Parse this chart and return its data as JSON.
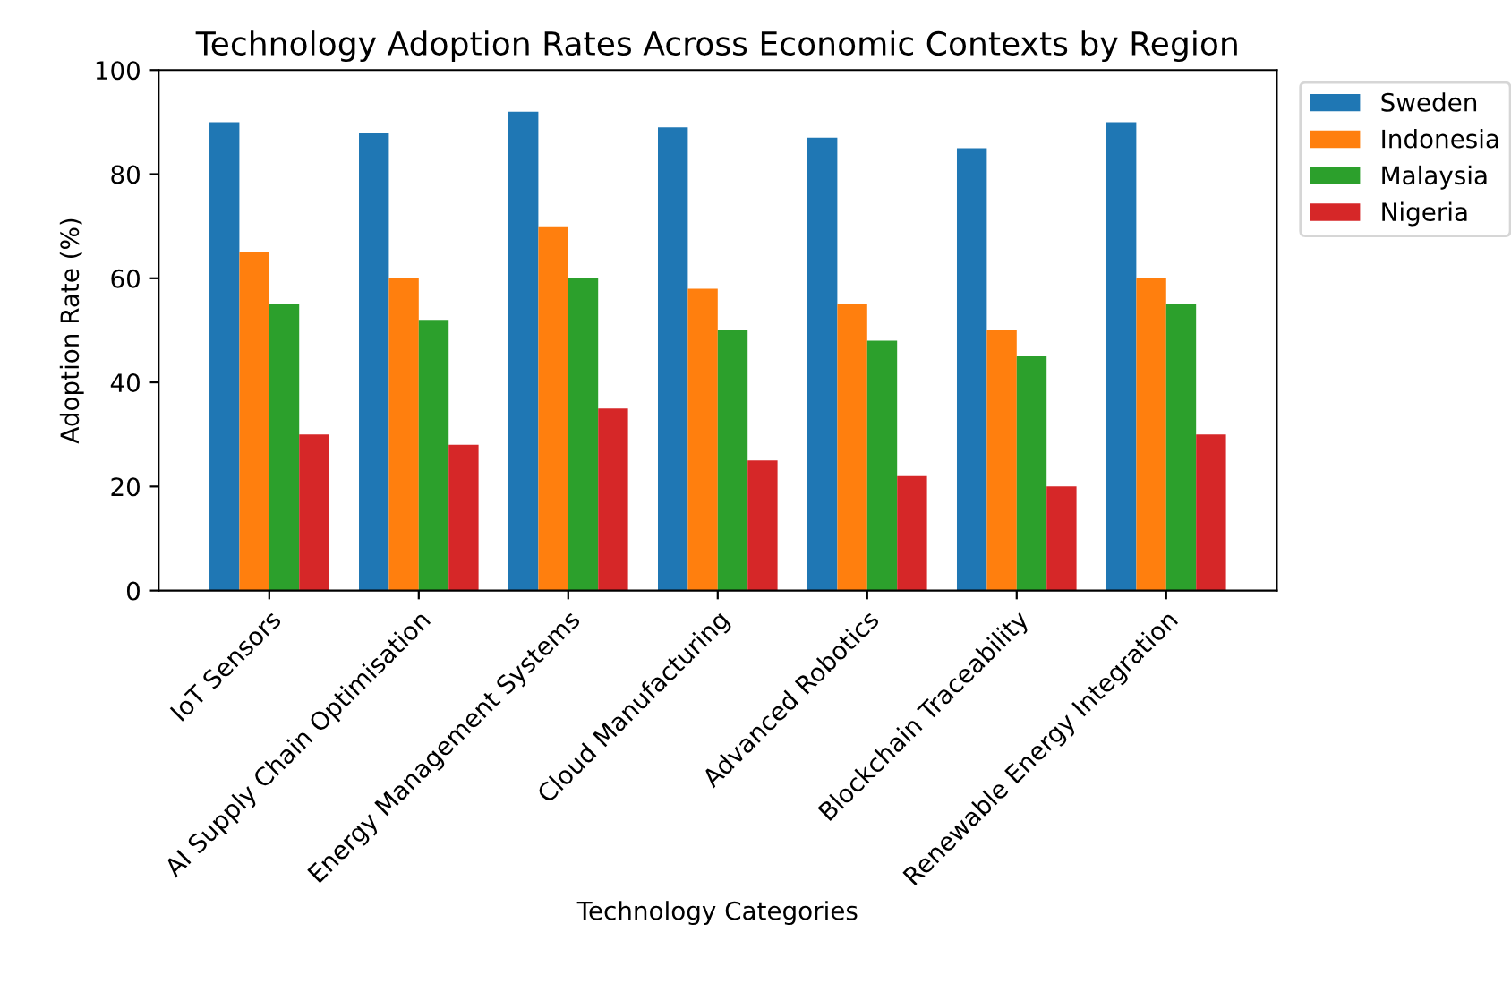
{
  "chart_data": {
    "type": "bar",
    "title": "Technology Adoption Rates Across Economic Contexts by Region",
    "xlabel": "Technology Categories",
    "ylabel": "Adoption Rate (%)",
    "categories": [
      "IoT Sensors",
      "AI Supply Chain Optimisation",
      "Energy Management Systems",
      "Cloud Manufacturing",
      "Advanced Robotics",
      "Blockchain Traceability",
      "Renewable Energy Integration"
    ],
    "series": [
      {
        "name": "Sweden",
        "color": "#1f77b4",
        "values": [
          90,
          88,
          92,
          89,
          87,
          85,
          90
        ]
      },
      {
        "name": "Indonesia",
        "color": "#ff7f0e",
        "values": [
          65,
          60,
          70,
          58,
          55,
          50,
          60
        ]
      },
      {
        "name": "Malaysia",
        "color": "#2ca02c",
        "values": [
          55,
          52,
          60,
          50,
          48,
          45,
          55
        ]
      },
      {
        "name": "Nigeria",
        "color": "#d62728",
        "values": [
          30,
          28,
          35,
          25,
          22,
          20,
          30
        ]
      }
    ],
    "ylim": [
      0,
      100
    ],
    "yticks": [
      0,
      20,
      40,
      60,
      80,
      100
    ],
    "grid": false,
    "legend": "top right"
  }
}
